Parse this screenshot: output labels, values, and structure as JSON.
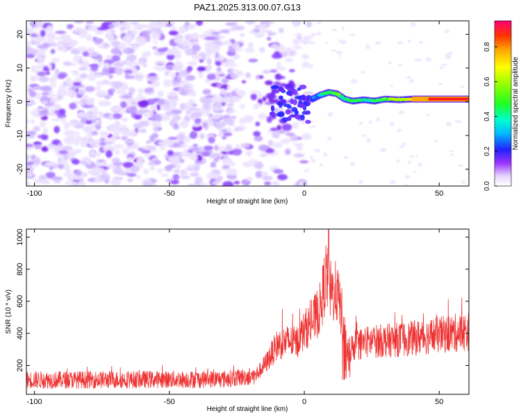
{
  "title": "PAZ1.2025.313.00.07.G13",
  "chart_data": [
    {
      "type": "heatmap",
      "xlabel": "Height of straight line (km)",
      "ylabel": "Frequency (Hz)",
      "xlim": [
        -103,
        61
      ],
      "ylim": [
        -25,
        24
      ],
      "xticks": [
        -100,
        -50,
        0,
        50
      ],
      "yticks": [
        -20,
        -10,
        0,
        10,
        20
      ],
      "colorbar": {
        "label": "Normalized spectral amplitude",
        "range": [
          0,
          0.95
        ],
        "ticks": [
          0.0,
          0.2,
          0.4,
          0.6,
          0.8
        ]
      },
      "signal_track": [
        {
          "x": 3,
          "f": 0.8,
          "amp": 0.35
        },
        {
          "x": 6,
          "f": 2.0,
          "amp": 0.45
        },
        {
          "x": 9,
          "f": 2.8,
          "amp": 0.55
        },
        {
          "x": 12,
          "f": 2.4,
          "amp": 0.6
        },
        {
          "x": 15,
          "f": 0.8,
          "amp": 0.5
        },
        {
          "x": 18,
          "f": 0.2,
          "amp": 0.55
        },
        {
          "x": 22,
          "f": 0.6,
          "amp": 0.5
        },
        {
          "x": 26,
          "f": 0.2,
          "amp": 0.5
        },
        {
          "x": 30,
          "f": 0.8,
          "amp": 0.6
        },
        {
          "x": 35,
          "f": 0.6,
          "amp": 0.65
        },
        {
          "x": 40,
          "f": 0.8,
          "amp": 0.8
        },
        {
          "x": 50,
          "f": 0.8,
          "amp": 0.95
        },
        {
          "x": 61,
          "f": 0.8,
          "amp": 0.95
        }
      ]
    },
    {
      "type": "line",
      "xlabel": "Height of straight line (km)",
      "ylabel": "SNR (10 * v/v)",
      "xlim": [
        -103,
        61
      ],
      "ylim": [
        20,
        1050
      ],
      "xticks": [
        -100,
        -50,
        0,
        50
      ],
      "yticks": [
        200,
        400,
        600,
        800,
        1000
      ],
      "color": "#ee3333",
      "series": [
        {
          "name": "SNR",
          "envelope": [
            {
              "x": -103,
              "y": 110
            },
            {
              "x": -60,
              "y": 112
            },
            {
              "x": -30,
              "y": 115
            },
            {
              "x": -18,
              "y": 135
            },
            {
              "x": -14,
              "y": 220
            },
            {
              "x": -10,
              "y": 330
            },
            {
              "x": -6,
              "y": 350
            },
            {
              "x": -3,
              "y": 340
            },
            {
              "x": 0,
              "y": 420
            },
            {
              "x": 3,
              "y": 470
            },
            {
              "x": 6,
              "y": 560
            },
            {
              "x": 8,
              "y": 760
            },
            {
              "x": 10,
              "y": 650
            },
            {
              "x": 12,
              "y": 660
            },
            {
              "x": 14,
              "y": 520
            },
            {
              "x": 16,
              "y": 290
            },
            {
              "x": 19,
              "y": 330
            },
            {
              "x": 25,
              "y": 350
            },
            {
              "x": 35,
              "y": 360
            },
            {
              "x": 45,
              "y": 380
            },
            {
              "x": 55,
              "y": 400
            },
            {
              "x": 61,
              "y": 410
            }
          ],
          "peak": {
            "x": 9,
            "y": 1050
          }
        }
      ]
    }
  ]
}
